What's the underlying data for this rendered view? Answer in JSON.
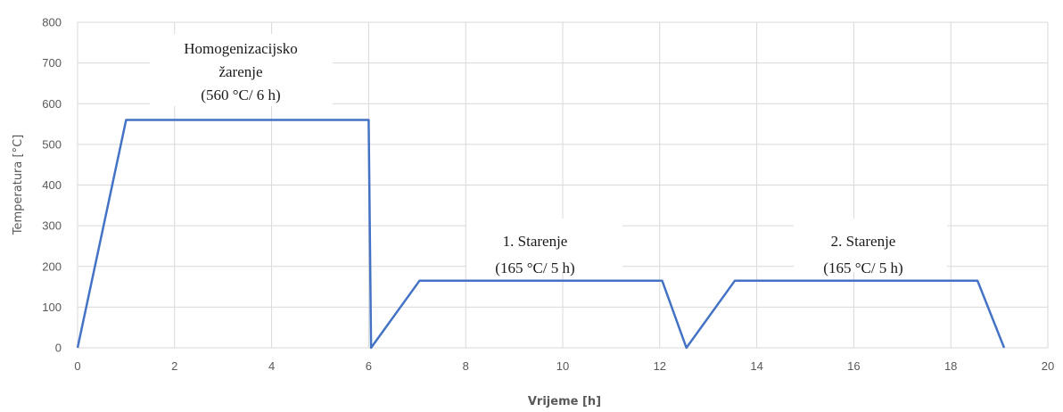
{
  "chart_data": {
    "type": "line",
    "title": "",
    "xlabel": "Vrijeme [h]",
    "ylabel": "Temperatura [°C]",
    "xlim": [
      0,
      20
    ],
    "ylim": [
      0,
      800
    ],
    "xticks": [
      "0",
      "2",
      "4",
      "6",
      "8",
      "10",
      "12",
      "14",
      "16",
      "18",
      "20"
    ],
    "yticks": [
      "0",
      "100",
      "200",
      "300",
      "400",
      "500",
      "600",
      "700",
      "800"
    ],
    "grid": true,
    "legend": "none",
    "series_color": "#4472c4",
    "series": [
      {
        "x": [
          0,
          1,
          6,
          6.05,
          7.05,
          12.05,
          12.55,
          13.55,
          18.55,
          19.1
        ],
        "y": [
          0,
          560,
          560,
          0,
          165,
          165,
          0,
          165,
          165,
          0
        ]
      }
    ],
    "annotations": [
      {
        "lines": [
          "Homogenizacijsko",
          "žarenje",
          "(560 °C/ 6 h)"
        ]
      },
      {
        "lines": [
          "1.  Starenje",
          "(165 °C/ 5 h)"
        ]
      },
      {
        "lines": [
          "2.  Starenje",
          "(165 °C/ 5 h)"
        ]
      }
    ]
  }
}
